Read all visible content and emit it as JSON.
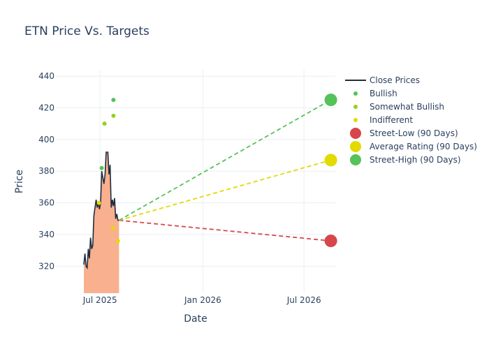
{
  "chart_data": {
    "type": "line",
    "title": "ETN Price Vs. Targets",
    "xlabel": "Date",
    "ylabel": "Price",
    "ylim": [
      303,
      444
    ],
    "xlim": [
      "2025-04-13",
      "2026-08-26"
    ],
    "yticks": [
      320,
      340,
      360,
      380,
      400,
      420,
      440
    ],
    "xticks": [
      {
        "date": "2025-07-01",
        "label": "Jul 2025"
      },
      {
        "date": "2026-01-01",
        "label": "Jan 2026"
      },
      {
        "date": "2026-07-01",
        "label": "Jul 2026"
      }
    ],
    "grid": true,
    "legend_position": "right",
    "close_prices": {
      "name": "Close Prices",
      "color": "#1f2d3d",
      "fill": "#f9b08f",
      "points": [
        [
          "2025-06-02",
          321
        ],
        [
          "2025-06-04",
          328
        ],
        [
          "2025-06-06",
          320
        ],
        [
          "2025-06-08",
          319
        ],
        [
          "2025-06-10",
          331
        ],
        [
          "2025-06-12",
          325
        ],
        [
          "2025-06-14",
          338
        ],
        [
          "2025-06-16",
          331
        ],
        [
          "2025-06-18",
          333
        ],
        [
          "2025-06-20",
          352
        ],
        [
          "2025-06-22",
          357
        ],
        [
          "2025-06-24",
          362
        ],
        [
          "2025-06-26",
          357
        ],
        [
          "2025-06-28",
          360
        ],
        [
          "2025-06-30",
          356
        ],
        [
          "2025-07-02",
          360
        ],
        [
          "2025-07-04",
          380
        ],
        [
          "2025-07-06",
          376
        ],
        [
          "2025-07-08",
          372
        ],
        [
          "2025-07-10",
          378
        ],
        [
          "2025-07-12",
          392
        ],
        [
          "2025-07-14",
          392
        ],
        [
          "2025-07-15",
          392
        ],
        [
          "2025-07-17",
          378
        ],
        [
          "2025-07-19",
          384
        ],
        [
          "2025-07-21",
          357
        ],
        [
          "2025-07-23",
          362
        ],
        [
          "2025-07-25",
          358
        ],
        [
          "2025-07-27",
          363
        ],
        [
          "2025-07-29",
          350
        ],
        [
          "2025-07-31",
          353
        ],
        [
          "2025-08-02",
          349
        ],
        [
          "2025-08-04",
          349
        ]
      ]
    },
    "series": [
      {
        "name": "Bullish",
        "color": "#55c25a",
        "points": [
          [
            "2025-07-04",
            382
          ],
          [
            "2025-07-25",
            425
          ]
        ]
      },
      {
        "name": "Somewhat Bullish",
        "color": "#93d120",
        "points": [
          [
            "2025-07-09",
            410
          ],
          [
            "2025-07-25",
            415
          ]
        ]
      },
      {
        "name": "Indifferent",
        "color": "#e3da00",
        "points": [
          [
            "2025-06-29",
            360
          ],
          [
            "2025-07-24",
            344
          ],
          [
            "2025-08-02",
            336
          ]
        ]
      },
      {
        "name": "Street-Low (90 Days)",
        "color": "#d6464b",
        "start": [
          "2025-08-04",
          349
        ],
        "end": [
          "2026-08-18",
          336
        ]
      },
      {
        "name": "Average Rating (90 Days)",
        "color": "#e3da00",
        "start": [
          "2025-08-04",
          349
        ],
        "end": [
          "2026-08-18",
          387
        ]
      },
      {
        "name": "Street-High (90 Days)",
        "color": "#55c25a",
        "start": [
          "2025-08-04",
          349
        ],
        "end": [
          "2026-08-18",
          425
        ]
      }
    ]
  }
}
